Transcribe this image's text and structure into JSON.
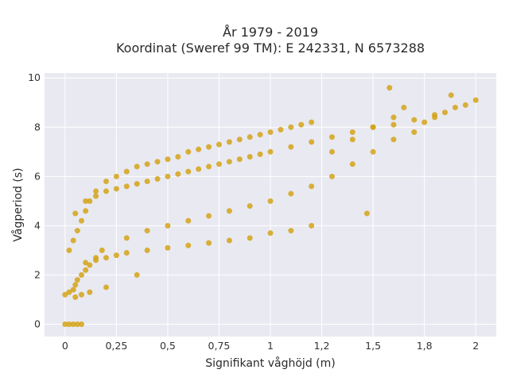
{
  "colors": {
    "page_bg": "#ffffff",
    "plot_bg": "#e9e9f1",
    "grid": "#ffffff",
    "marker": "#d4a317"
  },
  "chart_data": {
    "type": "scatter",
    "title": "År 1979 - 2019",
    "subtitle": "Koordinat (Sweref 99 TM): E 242331, N 6573288",
    "xlabel": "Signifikant våghöjd (m)",
    "ylabel": "Vågperiod (s)",
    "xlim": [
      -0.1,
      2.1
    ],
    "ylim": [
      -0.5,
      10.2
    ],
    "x_ticks": [
      0,
      0.25,
      0.5,
      0.75,
      1,
      1.25,
      1.5,
      1.75,
      2
    ],
    "x_tick_labels": [
      "0",
      "0,25",
      "0,5",
      "0,75",
      "1",
      "1,2",
      "1,5",
      "1,8",
      "2"
    ],
    "y_ticks": [
      0,
      2,
      4,
      6,
      8,
      10
    ],
    "y_tick_labels": [
      "0",
      "2",
      "4",
      "6",
      "8",
      "10"
    ],
    "grid": true,
    "legend": "none",
    "series": [
      {
        "x": [
          0.0,
          0.02,
          0.04,
          0.06,
          0.08,
          0.0,
          0.02,
          0.04,
          0.05,
          0.06,
          0.08,
          0.1,
          0.12,
          0.15,
          0.18,
          0.02,
          0.04,
          0.06,
          0.08,
          0.1,
          0.12,
          0.15,
          0.2,
          0.25,
          0.3,
          0.35,
          0.4,
          0.45,
          0.5,
          0.55,
          0.6,
          0.65,
          0.7,
          0.75,
          0.8,
          0.85,
          0.9,
          0.95,
          1.0,
          1.05,
          1.1,
          1.15,
          1.2,
          0.05,
          0.1,
          0.15,
          0.2,
          0.25,
          0.3,
          0.35,
          0.4,
          0.45,
          0.5,
          0.55,
          0.6,
          0.65,
          0.7,
          0.75,
          0.8,
          0.85,
          0.9,
          0.95,
          1.0,
          1.1,
          1.2,
          1.3,
          1.4,
          1.5,
          1.6,
          1.7,
          1.8,
          0.1,
          0.15,
          0.2,
          0.25,
          0.3,
          0.4,
          0.5,
          0.6,
          0.7,
          0.8,
          0.9,
          1.0,
          1.1,
          1.2,
          1.3,
          1.4,
          1.5,
          1.6,
          0.3,
          0.4,
          0.5,
          0.6,
          0.7,
          0.8,
          0.9,
          1.0,
          1.1,
          1.2,
          1.3,
          1.4,
          1.5,
          1.6,
          1.7,
          1.75,
          1.8,
          1.85,
          1.9,
          1.95,
          2.0,
          1.47,
          1.58,
          1.65,
          1.88,
          0.05,
          0.08,
          0.12,
          0.2,
          0.35
        ],
        "y": [
          0,
          0,
          0,
          0,
          0,
          1.2,
          1.3,
          1.4,
          1.6,
          1.8,
          2.0,
          2.2,
          2.4,
          2.7,
          3.0,
          3.0,
          3.4,
          3.8,
          4.2,
          4.6,
          5.0,
          5.4,
          5.8,
          6.0,
          6.2,
          6.4,
          6.5,
          6.6,
          6.7,
          6.8,
          7.0,
          7.1,
          7.2,
          7.3,
          7.4,
          7.5,
          7.6,
          7.7,
          7.8,
          7.9,
          8.0,
          8.1,
          8.2,
          4.5,
          5.0,
          5.2,
          5.4,
          5.5,
          5.6,
          5.7,
          5.8,
          5.9,
          6.0,
          6.1,
          6.2,
          6.3,
          6.4,
          6.5,
          6.6,
          6.7,
          6.8,
          6.9,
          7.0,
          7.2,
          7.4,
          7.6,
          7.8,
          8.0,
          8.1,
          8.3,
          8.5,
          2.5,
          2.6,
          2.7,
          2.8,
          2.9,
          3.0,
          3.1,
          3.2,
          3.3,
          3.4,
          3.5,
          3.7,
          3.8,
          4.0,
          7.0,
          7.5,
          8.0,
          8.4,
          3.5,
          3.8,
          4.0,
          4.2,
          4.4,
          4.6,
          4.8,
          5.0,
          5.3,
          5.6,
          6.0,
          6.5,
          7.0,
          7.5,
          7.8,
          8.2,
          8.4,
          8.6,
          8.8,
          8.9,
          9.1,
          4.5,
          9.6,
          8.8,
          9.3,
          1.1,
          1.2,
          1.3,
          1.5,
          2.0
        ]
      }
    ]
  }
}
